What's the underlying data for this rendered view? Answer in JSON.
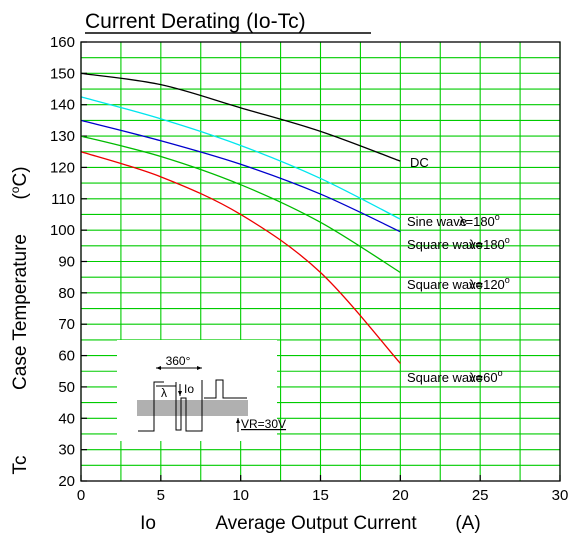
{
  "chart_data": {
    "type": "line",
    "title": "Current Derating  (Io-Tc)",
    "xlabel_symbol": "Io",
    "xlabel": "Average Output Current",
    "xlabel_unit": "(A)",
    "ylabel_symbol": "Tc",
    "ylabel": "Case Temperature",
    "ylabel_unit_open": "(",
    "ylabel_unit_sup": "o",
    "ylabel_unit_close": "C)",
    "xlim": [
      0,
      30
    ],
    "ylim": [
      20,
      160
    ],
    "xticks": [
      0,
      5,
      10,
      15,
      20,
      25,
      30
    ],
    "yticks": [
      20,
      30,
      40,
      50,
      60,
      70,
      80,
      90,
      100,
      110,
      120,
      130,
      140,
      150,
      160
    ],
    "grid": true,
    "grid_color": "#00cc00",
    "series": [
      {
        "name": "DC",
        "color": "#000000",
        "x": [
          0,
          5,
          10,
          15,
          20
        ],
        "y": [
          150,
          146.4,
          139,
          131.5,
          122
        ]
      },
      {
        "name": "Sine wave  λ=180°",
        "color": "#00e5ee",
        "x": [
          0,
          5,
          10,
          15,
          20
        ],
        "y": [
          142.5,
          135.5,
          127,
          116.5,
          103.5
        ]
      },
      {
        "name": "Square wave  λ=180°",
        "color": "#0000cc",
        "x": [
          0,
          5,
          10,
          15,
          20
        ],
        "y": [
          135,
          128.5,
          121,
          111.5,
          99.5
        ]
      },
      {
        "name": "Square wave  λ=120°",
        "color": "#00bb00",
        "x": [
          0,
          5,
          10,
          15,
          20
        ],
        "y": [
          130,
          123.5,
          114.5,
          102.5,
          86.5
        ]
      },
      {
        "name": "Square wave  λ=60°",
        "color": "#ee0000",
        "x": [
          0,
          5,
          10,
          15,
          20
        ],
        "y": [
          125,
          117,
          105,
          86.5,
          57.5
        ]
      }
    ],
    "annotations": [
      {
        "series": "DC",
        "prefix": "DC",
        "suffix": "",
        "sup": ""
      },
      {
        "series": "Sine wave  λ=180°",
        "prefix": "Sine wave",
        "suffix": "λ=180",
        "sup": "o"
      },
      {
        "series": "Square wave  λ=180°",
        "prefix": "Square wave",
        "suffix": "λ=180",
        "sup": "o"
      },
      {
        "series": "Square wave  λ=120°",
        "prefix": "Square wave",
        "suffix": "λ=120",
        "sup": "o"
      },
      {
        "series": "Square wave  λ=60°",
        "prefix": "Square wave",
        "suffix": "λ=60",
        "sup": "o"
      }
    ],
    "inset": {
      "period_label": "360°",
      "lambda_label": "λ",
      "io_label": "Io",
      "vr_label": "VR=30V"
    }
  }
}
